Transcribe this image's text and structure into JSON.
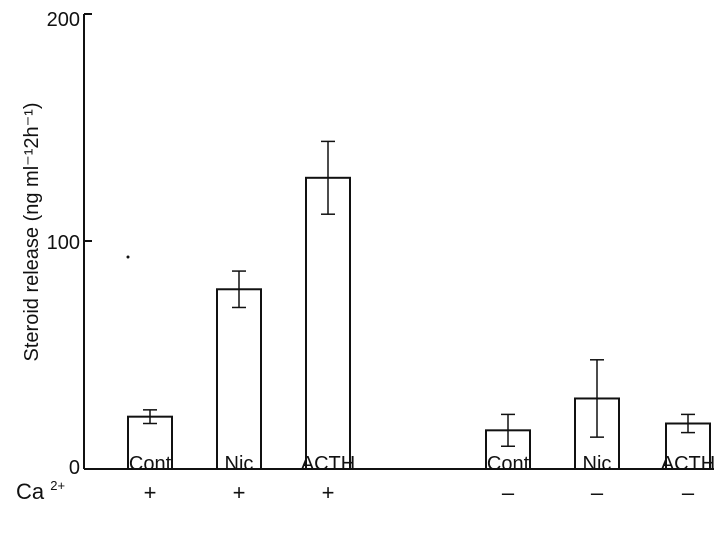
{
  "chart_data": {
    "type": "bar",
    "categories": [
      "Cont",
      "Nic",
      "ACTH",
      "Cont",
      "Nic",
      "ACTH"
    ],
    "ca_row_label": "Ca",
    "ca_row_label_sup": "2+",
    "ca_conditions": [
      "+",
      "+",
      "+",
      "–",
      "–",
      "–"
    ],
    "values": [
      23,
      79,
      128,
      17,
      31,
      20
    ],
    "errors": [
      3,
      8,
      16,
      7,
      17,
      4
    ],
    "ylabel": "Steroid release (ng ml⁻¹2h⁻¹)",
    "yticks": [
      "0",
      "100",
      "200"
    ],
    "ylim": [
      0,
      200
    ],
    "grid": false,
    "legend": "none",
    "bar_fill": "#ffffff",
    "bar_stroke": "#111111"
  }
}
